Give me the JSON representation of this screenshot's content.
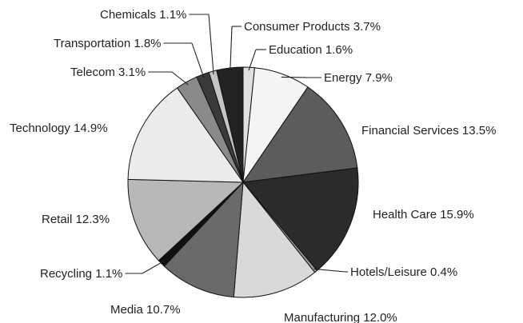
{
  "chart_data": {
    "type": "pie",
    "title": "",
    "slices": [
      {
        "label": "Education",
        "value": 1.6,
        "text": "Education 1.6%",
        "color": "#e0e0e0"
      },
      {
        "label": "Energy",
        "value": 7.9,
        "text": "Energy 7.9%",
        "color": "#f4f4f4"
      },
      {
        "label": "Financial Services",
        "value": 13.5,
        "text": "Financial Services 13.5%",
        "color": "#5c5c5c"
      },
      {
        "label": "Health Care",
        "value": 15.9,
        "text": "Health Care 15.9%",
        "color": "#2b2b2b"
      },
      {
        "label": "Hotels/Leisure",
        "value": 0.4,
        "text": "Hotels/Leisure 0.4%",
        "color": "#9a9a9a"
      },
      {
        "label": "Manufacturing",
        "value": 12.0,
        "text": "Manufacturing 12.0%",
        "color": "#d9d9d9"
      },
      {
        "label": "Media",
        "value": 10.7,
        "text": "Media 10.7%",
        "color": "#6a6a6a"
      },
      {
        "label": "Recycling",
        "value": 1.1,
        "text": "Recycling 1.1%",
        "color": "#111111"
      },
      {
        "label": "Retail",
        "value": 12.3,
        "text": "Retail 12.3%",
        "color": "#b8b8b8"
      },
      {
        "label": "Technology",
        "value": 14.9,
        "text": "Technology 14.9%",
        "color": "#ececec"
      },
      {
        "label": "Telecom",
        "value": 3.1,
        "text": "Telecom 3.1%",
        "color": "#8a8a8a"
      },
      {
        "label": "Transportation",
        "value": 1.8,
        "text": "Transportation 1.8%",
        "color": "#3a3a3a"
      },
      {
        "label": "Chemicals",
        "value": 1.1,
        "text": "Chemicals 1.1%",
        "color": "#c4c4c4"
      },
      {
        "label": "Consumer Products",
        "value": 3.7,
        "text": "Consumer Products 3.7%",
        "color": "#222222"
      }
    ],
    "start": "12 o'clock",
    "direction": "clockwise",
    "legend": "none",
    "labels": "outside with leader lines"
  }
}
